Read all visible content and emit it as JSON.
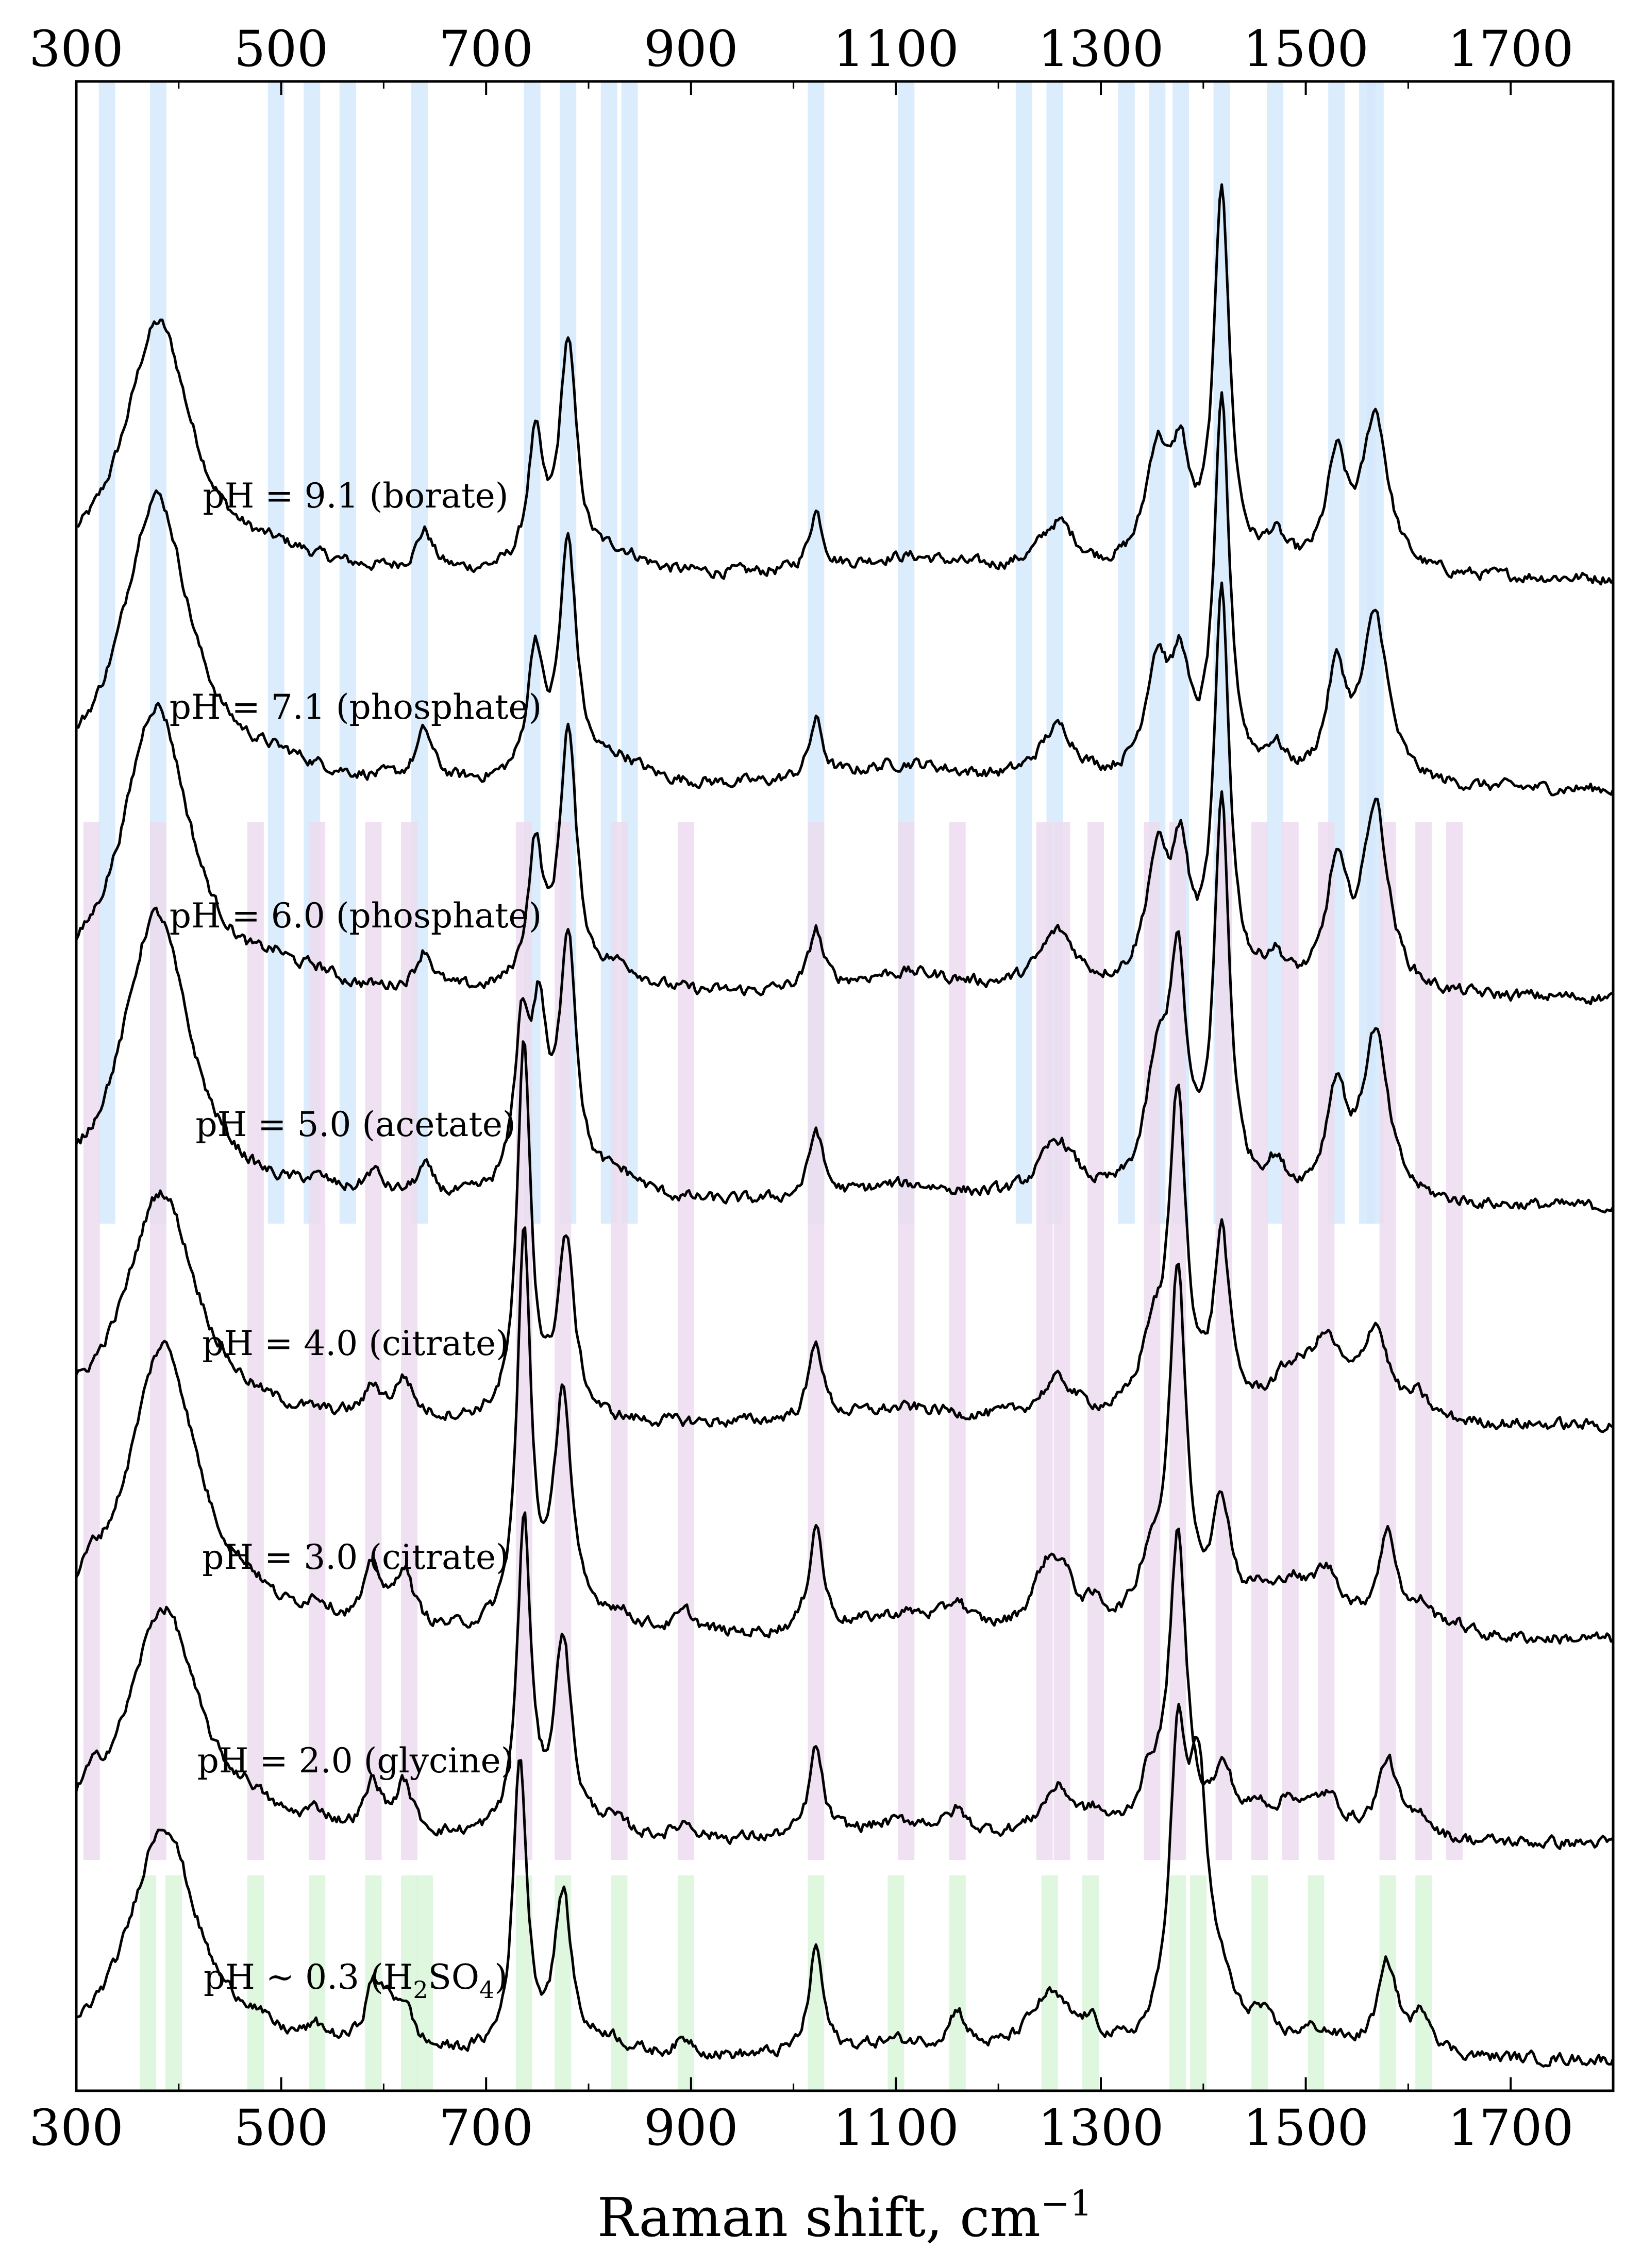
{
  "chart_data": {
    "type": "line",
    "title": "",
    "xlabel": "Raman shift, cm",
    "xlabel_superscript": "−1",
    "xlim": [
      300,
      1800
    ],
    "xticks": [
      300,
      500,
      700,
      900,
      1100,
      1300,
      1500,
      1700
    ],
    "xtick_labels": [
      "300",
      "500",
      "700",
      "900",
      "1100",
      "1300",
      "1500",
      "1700"
    ],
    "top_axis_ticks": true,
    "y_axis_ticks": false,
    "grid": false,
    "legend": "none",
    "colors": {
      "trace": "#000000",
      "band_blue": "#d5e9fb",
      "band_purple": "#ecdcef",
      "band_green": "#d9f5d9"
    },
    "series": [
      {
        "name": "pH = 9.1 (borate)",
        "label_parts": {
          "main": "pH = 9.1 (borate)",
          "sub": "",
          "tail": ""
        },
        "peaks": [
          [
            380,
            40,
            1.3
          ],
          [
            500,
            50,
            0.07
          ],
          [
            640,
            10,
            0.2
          ],
          [
            748,
            9,
            0.65
          ],
          [
            780,
            10,
            1.15
          ],
          [
            830,
            30,
            0.1
          ],
          [
            1022,
            8,
            0.3
          ],
          [
            1110,
            70,
            0.1
          ],
          [
            1258,
            22,
            0.25
          ],
          [
            1355,
            14,
            0.6
          ],
          [
            1378,
            10,
            0.5
          ],
          [
            1418,
            9,
            1.95
          ],
          [
            1470,
            12,
            0.15
          ],
          [
            1530,
            12,
            0.55
          ],
          [
            1568,
            15,
            0.8
          ]
        ]
      },
      {
        "name": "pH = 7.1 (phosphate)",
        "label_parts": {
          "main": "pH = 7.1 (phosphate)",
          "sub": "",
          "tail": ""
        },
        "peaks": [
          [
            378,
            40,
            1.5
          ],
          [
            500,
            50,
            0.07
          ],
          [
            640,
            10,
            0.25
          ],
          [
            748,
            9,
            0.65
          ],
          [
            780,
            10,
            1.2
          ],
          [
            830,
            30,
            0.12
          ],
          [
            1022,
            8,
            0.3
          ],
          [
            1110,
            70,
            0.12
          ],
          [
            1258,
            22,
            0.28
          ],
          [
            1355,
            14,
            0.6
          ],
          [
            1378,
            10,
            0.5
          ],
          [
            1418,
            9,
            1.9
          ],
          [
            1470,
            12,
            0.15
          ],
          [
            1530,
            12,
            0.55
          ],
          [
            1568,
            15,
            0.85
          ]
        ]
      },
      {
        "name": "pH = 6.0 (phosphate)",
        "label_parts": {
          "main": "pH = 6.0 (phosphate)",
          "sub": "",
          "tail": ""
        },
        "peaks": [
          [
            378,
            40,
            1.5
          ],
          [
            495,
            20,
            0.08
          ],
          [
            535,
            20,
            0.06
          ],
          [
            640,
            10,
            0.2
          ],
          [
            748,
            9,
            0.7
          ],
          [
            780,
            10,
            1.3
          ],
          [
            830,
            30,
            0.12
          ],
          [
            1022,
            8,
            0.3
          ],
          [
            1110,
            70,
            0.12
          ],
          [
            1258,
            22,
            0.3
          ],
          [
            1355,
            14,
            0.65
          ],
          [
            1378,
            10,
            0.6
          ],
          [
            1418,
            9,
            2.0
          ],
          [
            1470,
            12,
            0.15
          ],
          [
            1530,
            12,
            0.6
          ],
          [
            1568,
            15,
            0.95
          ]
        ]
      },
      {
        "name": "pH = 5.0 (acetate)",
        "label_parts": {
          "main": "pH = 5.0 (acetate)",
          "sub": "",
          "tail": ""
        },
        "peaks": [
          [
            378,
            40,
            1.5
          ],
          [
            535,
            20,
            0.06
          ],
          [
            590,
            10,
            0.12
          ],
          [
            640,
            10,
            0.15
          ],
          [
            735,
            9,
            0.8
          ],
          [
            752,
            9,
            0.8
          ],
          [
            780,
            10,
            1.3
          ],
          [
            830,
            30,
            0.12
          ],
          [
            1022,
            8,
            0.35
          ],
          [
            1110,
            70,
            0.1
          ],
          [
            1258,
            22,
            0.3
          ],
          [
            1355,
            14,
            0.6
          ],
          [
            1375,
            10,
            1.1
          ],
          [
            1418,
            9,
            2.0
          ],
          [
            1470,
            12,
            0.15
          ],
          [
            1530,
            12,
            0.55
          ],
          [
            1568,
            15,
            0.85
          ]
        ]
      },
      {
        "name": "pH = 4.0 (citrate)",
        "label_parts": {
          "main": "pH = 4.0 (citrate)",
          "sub": "",
          "tail": ""
        },
        "peaks": [
          [
            383,
            42,
            1.2
          ],
          [
            590,
            10,
            0.15
          ],
          [
            620,
            10,
            0.2
          ],
          [
            737,
            8,
            1.9
          ],
          [
            778,
            10,
            0.9
          ],
          [
            1022,
            8,
            0.4
          ],
          [
            1110,
            70,
            0.08
          ],
          [
            1258,
            22,
            0.2
          ],
          [
            1350,
            14,
            0.35
          ],
          [
            1375,
            10,
            1.6
          ],
          [
            1418,
            9,
            0.9
          ],
          [
            1485,
            25,
            0.2
          ],
          [
            1520,
            20,
            0.35
          ],
          [
            1568,
            15,
            0.45
          ],
          [
            1610,
            12,
            0.1
          ]
        ]
      },
      {
        "name": "pH = 3.0 (citrate)",
        "label_parts": {
          "main": "pH = 3.0 (citrate)",
          "sub": "",
          "tail": ""
        },
        "peaks": [
          [
            315,
            12,
            0.1
          ],
          [
            385,
            42,
            1.5
          ],
          [
            470,
            20,
            0.08
          ],
          [
            535,
            15,
            0.1
          ],
          [
            590,
            10,
            0.3
          ],
          [
            620,
            10,
            0.3
          ],
          [
            737,
            8,
            2.0
          ],
          [
            775,
            10,
            1.2
          ],
          [
            825,
            25,
            0.1
          ],
          [
            895,
            12,
            0.1
          ],
          [
            1022,
            8,
            0.55
          ],
          [
            1110,
            60,
            0.12
          ],
          [
            1160,
            10,
            0.12
          ],
          [
            1245,
            15,
            0.25
          ],
          [
            1262,
            15,
            0.25
          ],
          [
            1295,
            12,
            0.1
          ],
          [
            1348,
            14,
            0.3
          ],
          [
            1375,
            10,
            1.8
          ],
          [
            1418,
            12,
            0.6
          ],
          [
            1455,
            15,
            0.15
          ],
          [
            1485,
            15,
            0.2
          ],
          [
            1520,
            20,
            0.3
          ],
          [
            1580,
            12,
            0.5
          ],
          [
            1615,
            12,
            0.12
          ],
          [
            1645,
            15,
            0.05
          ]
        ]
      },
      {
        "name": "pH = 2.0 (glycine)",
        "label_parts": {
          "main": "pH = 2.0 (glycine)",
          "sub": "",
          "tail": ""
        },
        "peaks": [
          [
            315,
            12,
            0.1
          ],
          [
            385,
            42,
            1.2
          ],
          [
            470,
            20,
            0.08
          ],
          [
            535,
            15,
            0.08
          ],
          [
            590,
            10,
            0.25
          ],
          [
            620,
            10,
            0.25
          ],
          [
            737,
            8,
            1.6
          ],
          [
            775,
            10,
            1.0
          ],
          [
            820,
            20,
            0.08
          ],
          [
            895,
            12,
            0.08
          ],
          [
            1022,
            8,
            0.45
          ],
          [
            1110,
            60,
            0.1
          ],
          [
            1160,
            10,
            0.1
          ],
          [
            1258,
            20,
            0.25
          ],
          [
            1295,
            12,
            0.08
          ],
          [
            1348,
            14,
            0.25
          ],
          [
            1375,
            10,
            1.5
          ],
          [
            1420,
            12,
            0.3
          ],
          [
            1455,
            15,
            0.12
          ],
          [
            1485,
            15,
            0.15
          ],
          [
            1520,
            20,
            0.2
          ],
          [
            1580,
            12,
            0.4
          ],
          [
            1615,
            12,
            0.1
          ]
        ]
      },
      {
        "name": "pH ~ 0.3 (H2SO4)",
        "label_parts": {
          "main": "pH ~ 0.3 (H",
          "sub": "2",
          "mid": "SO",
          "sub2": "4",
          "tail": ")"
        },
        "peaks": [
          [
            385,
            40,
            1.2
          ],
          [
            470,
            20,
            0.07
          ],
          [
            535,
            15,
            0.08
          ],
          [
            590,
            10,
            0.3
          ],
          [
            605,
            10,
            0.15
          ],
          [
            620,
            10,
            0.2
          ],
          [
            733,
            8,
            1.5
          ],
          [
            775,
            10,
            0.8
          ],
          [
            820,
            20,
            0.08
          ],
          [
            895,
            12,
            0.08
          ],
          [
            1022,
            8,
            0.55
          ],
          [
            1100,
            50,
            0.08
          ],
          [
            1160,
            10,
            0.2
          ],
          [
            1250,
            25,
            0.3
          ],
          [
            1290,
            12,
            0.1
          ],
          [
            1375,
            10,
            1.4
          ],
          [
            1395,
            12,
            1.3
          ],
          [
            1420,
            12,
            0.2
          ],
          [
            1455,
            15,
            0.15
          ],
          [
            1510,
            30,
            0.12
          ],
          [
            1580,
            12,
            0.45
          ],
          [
            1615,
            12,
            0.2
          ]
        ]
      }
    ],
    "highlight_bands": [
      {
        "color": "blue",
        "from_series": 0,
        "to_series": 3,
        "positions": [
          330,
          380,
          495,
          530,
          565,
          635,
          745,
          780,
          820,
          840,
          1022,
          1110,
          1225,
          1255,
          1325,
          1355,
          1378,
          1418,
          1470,
          1530,
          1560,
          1568
        ]
      },
      {
        "color": "purple",
        "from_series": 2,
        "to_series": 6,
        "positions": [
          315,
          380,
          475,
          535,
          590,
          625,
          737,
          775,
          830,
          895,
          1022,
          1110,
          1160,
          1245,
          1262,
          1295,
          1350,
          1375,
          1420,
          1455,
          1485,
          1520,
          1580,
          1615,
          1645
        ]
      },
      {
        "color": "green",
        "from_series": 7,
        "to_series": 7,
        "positions": [
          370,
          395,
          475,
          535,
          590,
          625,
          640,
          737,
          775,
          830,
          895,
          1022,
          1100,
          1160,
          1250,
          1290,
          1375,
          1395,
          1455,
          1510,
          1580,
          1615
        ]
      }
    ]
  }
}
